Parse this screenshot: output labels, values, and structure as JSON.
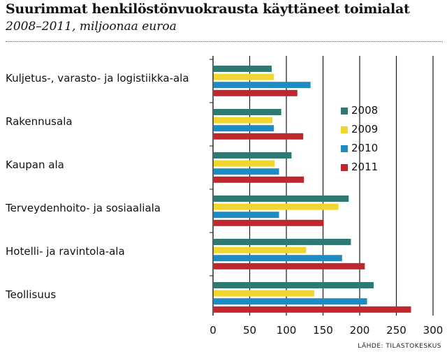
{
  "title": "Suurimmat henkilöstönvuokrausta käyttäneet toimialat",
  "subtitle": "2008–2011, miljoonaa euroa",
  "source": "LÄHDE: TILASTOKESKUS",
  "colors": {
    "2008": "#2e7a72",
    "2009": "#f2d630",
    "2010": "#1d8cc4",
    "2011": "#c0262e"
  },
  "chart_data": {
    "type": "bar",
    "orientation": "horizontal",
    "categories": [
      "Kuljetus-, varasto- ja logistiikka-ala",
      "Rakennusala",
      "Kaupan ala",
      "Terveydenhoito- ja sosiaaliala",
      "Hotelli- ja ravintola-ala",
      "Teollisuus"
    ],
    "series": [
      {
        "name": "2008",
        "values": [
          80,
          93,
          107,
          185,
          188,
          219
        ]
      },
      {
        "name": "2009",
        "values": [
          83,
          81,
          84,
          171,
          127,
          138
        ]
      },
      {
        "name": "2010",
        "values": [
          133,
          83,
          90,
          90,
          176,
          210
        ]
      },
      {
        "name": "2011",
        "values": [
          115,
          123,
          124,
          151,
          207,
          270
        ]
      }
    ],
    "xlim": [
      0,
      300
    ],
    "xticks": [
      "0",
      "50",
      "100",
      "150",
      "200",
      "250",
      "300"
    ],
    "grid": true,
    "legend_position": "upper-right"
  }
}
